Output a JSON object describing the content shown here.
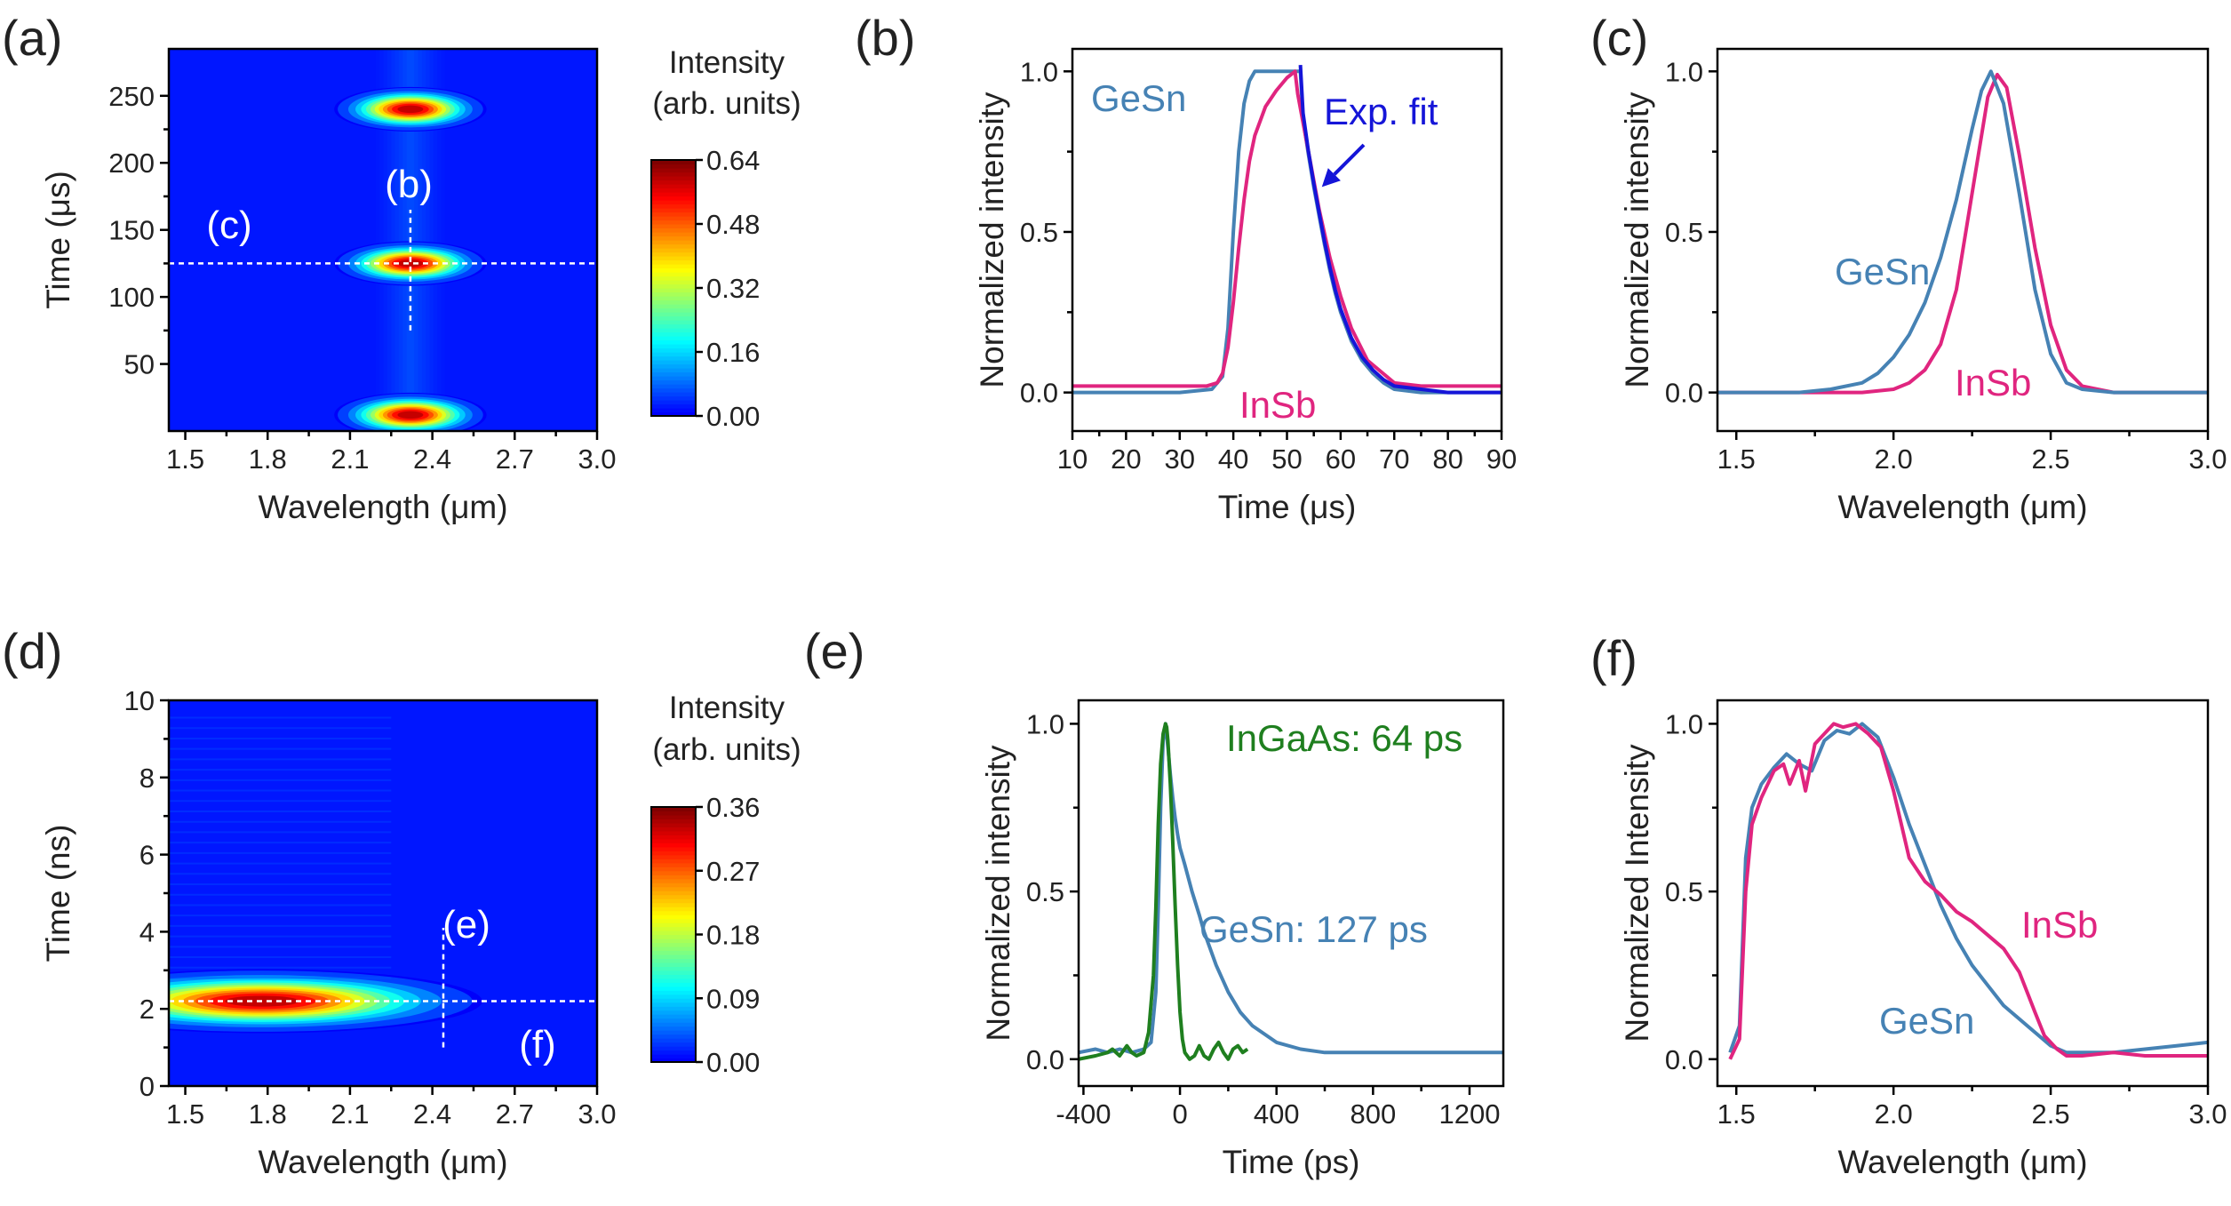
{
  "chart_data": [
    {
      "id": "a",
      "type": "heatmap",
      "panel_label": "(a)",
      "xlabel": "Wavelength (μm)",
      "ylabel": "Time (μs)",
      "xlim": [
        1.44,
        3.0
      ],
      "ylim": [
        0,
        285
      ],
      "xticks": [
        1.5,
        1.8,
        2.1,
        2.4,
        2.7,
        3.0
      ],
      "xtick_labels": [
        "1.5",
        "1.8",
        "2.1",
        "2.4",
        "2.7",
        "3.0"
      ],
      "yticks": [
        50,
        100,
        150,
        200,
        250
      ],
      "ytick_labels": [
        "50",
        "100",
        "150",
        "200",
        "250"
      ],
      "colorbar": {
        "title_line1": "Intensity",
        "title_line2": "(arb. units)",
        "min": 0.0,
        "max": 0.64,
        "ticks": [
          0.0,
          0.16,
          0.32,
          0.48,
          0.64
        ],
        "tick_labels": [
          "0.00",
          "0.16",
          "0.32",
          "0.48",
          "0.64"
        ]
      },
      "blobs": [
        {
          "center_wavelength": 2.32,
          "center_time": 240,
          "width": 0.09,
          "height": 7,
          "peak": 0.64
        },
        {
          "center_wavelength": 2.32,
          "center_time": 125,
          "width": 0.09,
          "height": 7,
          "peak": 0.64
        },
        {
          "center_wavelength": 2.32,
          "center_time": 12,
          "width": 0.09,
          "height": 7,
          "peak": 0.64
        }
      ],
      "column_glow": {
        "center_wavelength": 2.32,
        "width": 0.14,
        "level": 0.07
      },
      "markers": [
        {
          "label": "(b)",
          "orientation": "vertical",
          "value": 2.32,
          "from": 75,
          "to": 165
        },
        {
          "label": "(c)",
          "orientation": "horizontal",
          "value": 125,
          "from": 1.44,
          "to": 3.0
        }
      ]
    },
    {
      "id": "b",
      "type": "line",
      "panel_label": "(b)",
      "xlabel": "Time (μs)",
      "ylabel": "Normalized intensity",
      "xlim": [
        10,
        90
      ],
      "ylim": [
        -0.12,
        1.07
      ],
      "xticks": [
        10,
        20,
        30,
        40,
        50,
        60,
        70,
        80,
        90
      ],
      "xtick_labels": [
        "10",
        "20",
        "30",
        "40",
        "50",
        "60",
        "70",
        "80",
        "90"
      ],
      "yticks": [
        0.0,
        0.5,
        1.0
      ],
      "ytick_labels": [
        "0.0",
        "0.5",
        "1.0"
      ],
      "series": [
        {
          "name": "GeSn",
          "color": "#4682b4",
          "x": [
            10,
            20,
            30,
            36,
            38,
            39,
            40,
            41,
            42,
            43,
            44,
            46,
            50,
            52.5,
            53,
            54,
            55,
            56,
            57,
            58,
            59,
            60,
            62,
            64,
            66,
            68,
            70,
            75,
            80,
            90
          ],
          "y": [
            0.0,
            0.0,
            0.0,
            0.01,
            0.05,
            0.2,
            0.5,
            0.75,
            0.9,
            0.97,
            1.0,
            1.0,
            1.0,
            1.0,
            0.85,
            0.74,
            0.64,
            0.55,
            0.46,
            0.38,
            0.31,
            0.25,
            0.16,
            0.1,
            0.06,
            0.03,
            0.01,
            0.0,
            0.0,
            0.0
          ]
        },
        {
          "name": "InSb",
          "color": "#e0257f",
          "x": [
            10,
            15,
            20,
            25,
            30,
            35,
            37,
            38,
            39,
            40,
            41,
            42,
            43,
            44,
            46,
            48,
            50,
            51.5,
            52,
            53,
            54,
            55,
            56,
            58,
            60,
            62,
            65,
            70,
            75,
            80,
            85,
            90
          ],
          "y": [
            0.02,
            0.02,
            0.02,
            0.02,
            0.02,
            0.02,
            0.03,
            0.06,
            0.14,
            0.28,
            0.45,
            0.6,
            0.72,
            0.8,
            0.89,
            0.94,
            0.98,
            1.0,
            0.93,
            0.84,
            0.75,
            0.66,
            0.57,
            0.42,
            0.3,
            0.2,
            0.1,
            0.03,
            0.02,
            0.02,
            0.02,
            0.02
          ]
        },
        {
          "name": "Exp. fit",
          "color": "#1515d8",
          "x": [
            52.5,
            53,
            54,
            55,
            56,
            57,
            58,
            59,
            60,
            62,
            64,
            66,
            68,
            70,
            75,
            80,
            85,
            90
          ],
          "y": [
            1.02,
            0.87,
            0.75,
            0.65,
            0.56,
            0.47,
            0.39,
            0.32,
            0.26,
            0.17,
            0.11,
            0.07,
            0.04,
            0.02,
            0.01,
            0.0,
            0.0,
            0.0
          ]
        }
      ],
      "annotations": [
        {
          "text": "GeSn",
          "color": "#4682b4"
        },
        {
          "text": "InSb",
          "color": "#e0257f"
        },
        {
          "text": "Exp. fit",
          "color": "#1515d8",
          "arrow_to": [
            56.5,
            0.64
          ]
        }
      ]
    },
    {
      "id": "c",
      "type": "line",
      "panel_label": "(c)",
      "xlabel": "Wavelength (μm)",
      "ylabel": "Normalized intensity",
      "xlim": [
        1.44,
        3.0
      ],
      "ylim": [
        -0.12,
        1.07
      ],
      "xticks": [
        1.5,
        2.0,
        2.5,
        3.0
      ],
      "xtick_labels": [
        "1.5",
        "2.0",
        "2.5",
        "3.0"
      ],
      "yticks": [
        0.0,
        0.5,
        1.0
      ],
      "ytick_labels": [
        "0.0",
        "0.5",
        "1.0"
      ],
      "series": [
        {
          "name": "InSb",
          "color": "#e0257f",
          "x": [
            1.44,
            1.7,
            1.9,
            2.0,
            2.05,
            2.1,
            2.15,
            2.2,
            2.25,
            2.3,
            2.33,
            2.36,
            2.4,
            2.45,
            2.5,
            2.55,
            2.6,
            2.7,
            3.0
          ],
          "y": [
            0.0,
            0.0,
            0.0,
            0.01,
            0.03,
            0.07,
            0.15,
            0.32,
            0.62,
            0.92,
            0.99,
            0.95,
            0.74,
            0.45,
            0.21,
            0.07,
            0.02,
            0.0,
            0.0
          ]
        },
        {
          "name": "GeSn",
          "color": "#4682b4",
          "x": [
            1.44,
            1.7,
            1.8,
            1.9,
            1.95,
            2.0,
            2.05,
            2.1,
            2.15,
            2.2,
            2.25,
            2.28,
            2.31,
            2.35,
            2.4,
            2.45,
            2.5,
            2.55,
            2.6,
            2.7,
            3.0
          ],
          "y": [
            0.0,
            0.0,
            0.01,
            0.03,
            0.06,
            0.11,
            0.18,
            0.28,
            0.42,
            0.6,
            0.82,
            0.94,
            1.0,
            0.9,
            0.62,
            0.32,
            0.12,
            0.03,
            0.01,
            0.0,
            0.0
          ]
        }
      ],
      "annotations": [
        {
          "text": "GeSn",
          "color": "#4682b4"
        },
        {
          "text": "InSb",
          "color": "#e0257f"
        }
      ]
    },
    {
      "id": "d",
      "type": "heatmap",
      "panel_label": "(d)",
      "xlabel": "Wavelength (μm)",
      "ylabel": "Time (ns)",
      "xlim": [
        1.44,
        3.0
      ],
      "ylim": [
        0,
        10
      ],
      "xticks": [
        1.5,
        1.8,
        2.1,
        2.4,
        2.7,
        3.0
      ],
      "xtick_labels": [
        "1.5",
        "1.8",
        "2.1",
        "2.4",
        "2.7",
        "3.0"
      ],
      "yticks": [
        0,
        2,
        4,
        6,
        8,
        10
      ],
      "ytick_labels": [
        "0",
        "2",
        "4",
        "6",
        "8",
        "10"
      ],
      "colorbar": {
        "title_line1": "Intensity",
        "title_line2": "(arb. units)",
        "min": 0.0,
        "max": 0.36,
        "ticks": [
          0.0,
          0.09,
          0.18,
          0.27,
          0.36
        ],
        "tick_labels": [
          "0.00",
          "0.09",
          "0.18",
          "0.27",
          "0.36"
        ]
      },
      "blobs": [
        {
          "center_wavelength": 1.78,
          "center_time": 2.2,
          "width": 0.26,
          "height": 0.35,
          "peak": 0.36
        }
      ],
      "markers": [
        {
          "label": "(e)",
          "orientation": "vertical",
          "value": 2.44,
          "from": 1.0,
          "to": 4.1
        },
        {
          "label": "(f)",
          "orientation": "horizontal",
          "value": 2.2,
          "from": 1.44,
          "to": 3.0
        }
      ]
    },
    {
      "id": "e",
      "type": "line",
      "panel_label": "(e)",
      "xlabel": "Time (ps)",
      "ylabel": "Normalized intensity",
      "xlim": [
        -420,
        1340
      ],
      "ylim": [
        -0.08,
        1.07
      ],
      "xticks": [
        -400,
        0,
        400,
        800,
        1200
      ],
      "xtick_labels": [
        "-400",
        "0",
        "400",
        "800",
        "1200"
      ],
      "yticks": [
        0.0,
        0.5,
        1.0
      ],
      "ytick_labels": [
        "0.0",
        "0.5",
        "1.0"
      ],
      "series": [
        {
          "name": "GeSn",
          "color": "#4682b4",
          "x": [
            -420,
            -350,
            -300,
            -250,
            -200,
            -150,
            -120,
            -100,
            -90,
            -80,
            -70,
            -60,
            -50,
            -40,
            -30,
            -20,
            -10,
            0,
            20,
            50,
            80,
            100,
            150,
            200,
            250,
            300,
            400,
            500,
            600,
            800,
            1000,
            1200,
            1340
          ],
          "y": [
            0.02,
            0.03,
            0.02,
            0.03,
            0.02,
            0.03,
            0.05,
            0.2,
            0.45,
            0.75,
            0.95,
            1.0,
            0.93,
            0.85,
            0.78,
            0.72,
            0.67,
            0.63,
            0.58,
            0.5,
            0.43,
            0.38,
            0.28,
            0.2,
            0.14,
            0.1,
            0.05,
            0.03,
            0.02,
            0.02,
            0.02,
            0.02,
            0.02
          ]
        },
        {
          "name": "InGaAs",
          "color": "#1f7f1f",
          "x": [
            -420,
            -350,
            -300,
            -280,
            -250,
            -220,
            -200,
            -180,
            -150,
            -130,
            -110,
            -100,
            -90,
            -80,
            -70,
            -60,
            -55,
            -50,
            -40,
            -30,
            -20,
            -10,
            0,
            10,
            20,
            40,
            60,
            80,
            100,
            120,
            140,
            160,
            180,
            200,
            220,
            240,
            260,
            280
          ],
          "y": [
            0.0,
            0.01,
            0.02,
            0.03,
            0.01,
            0.04,
            0.02,
            0.01,
            0.02,
            0.08,
            0.25,
            0.45,
            0.7,
            0.88,
            0.97,
            1.0,
            0.99,
            0.95,
            0.82,
            0.65,
            0.46,
            0.28,
            0.14,
            0.06,
            0.02,
            0.0,
            0.01,
            0.04,
            0.01,
            0.0,
            0.03,
            0.05,
            0.02,
            0.0,
            0.03,
            0.04,
            0.02,
            0.03
          ]
        }
      ],
      "annotations": [
        {
          "text": "InGaAs: 64 ps",
          "color": "#1f7f1f"
        },
        {
          "text": "GeSn: 127 ps",
          "color": "#4682b4"
        }
      ]
    },
    {
      "id": "f",
      "type": "line",
      "panel_label": "(f)",
      "xlabel": "Wavelength (μm)",
      "ylabel": "Normalized Intensity",
      "xlim": [
        1.44,
        3.0
      ],
      "ylim": [
        -0.08,
        1.07
      ],
      "xticks": [
        1.5,
        2.0,
        2.5,
        3.0
      ],
      "xtick_labels": [
        "1.5",
        "2.0",
        "2.5",
        "3.0"
      ],
      "yticks": [
        0.0,
        0.5,
        1.0
      ],
      "ytick_labels": [
        "0.0",
        "0.5",
        "1.0"
      ],
      "series": [
        {
          "name": "GeSn",
          "color": "#4682b4",
          "x": [
            1.48,
            1.51,
            1.53,
            1.55,
            1.58,
            1.62,
            1.66,
            1.7,
            1.74,
            1.78,
            1.82,
            1.86,
            1.9,
            1.95,
            2.0,
            2.05,
            2.1,
            2.15,
            2.2,
            2.25,
            2.3,
            2.35,
            2.4,
            2.45,
            2.5,
            2.55,
            2.6,
            2.7,
            2.8,
            2.9,
            3.0
          ],
          "y": [
            0.02,
            0.1,
            0.6,
            0.75,
            0.82,
            0.87,
            0.91,
            0.88,
            0.86,
            0.95,
            0.98,
            0.97,
            1.0,
            0.96,
            0.84,
            0.7,
            0.58,
            0.46,
            0.36,
            0.28,
            0.22,
            0.16,
            0.12,
            0.08,
            0.04,
            0.02,
            0.02,
            0.02,
            0.03,
            0.04,
            0.05
          ]
        },
        {
          "name": "InSb",
          "color": "#e0257f",
          "x": [
            1.48,
            1.51,
            1.53,
            1.55,
            1.58,
            1.62,
            1.65,
            1.67,
            1.7,
            1.72,
            1.75,
            1.78,
            1.81,
            1.84,
            1.88,
            1.92,
            1.96,
            2.0,
            2.05,
            2.1,
            2.15,
            2.2,
            2.25,
            2.3,
            2.35,
            2.4,
            2.45,
            2.48,
            2.52,
            2.55,
            2.6,
            2.7,
            2.8,
            2.9,
            3.0
          ],
          "y": [
            0.0,
            0.06,
            0.5,
            0.7,
            0.78,
            0.86,
            0.88,
            0.82,
            0.89,
            0.8,
            0.94,
            0.97,
            1.0,
            0.99,
            1.0,
            0.97,
            0.93,
            0.8,
            0.6,
            0.53,
            0.49,
            0.44,
            0.41,
            0.37,
            0.33,
            0.26,
            0.14,
            0.07,
            0.03,
            0.01,
            0.01,
            0.02,
            0.01,
            0.01,
            0.01
          ]
        }
      ],
      "annotations": [
        {
          "text": "InSb",
          "color": "#e0257f"
        },
        {
          "text": "GeSn",
          "color": "#4682b4"
        }
      ]
    }
  ]
}
